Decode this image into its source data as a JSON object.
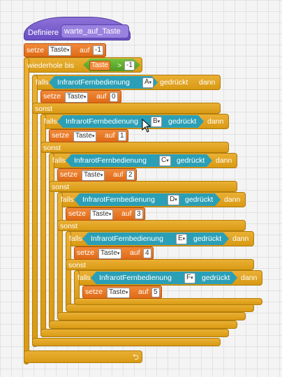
{
  "define_block": {
    "label": "Definiere",
    "name": "warte_auf_Taste"
  },
  "labels": {
    "setze": "setze",
    "auf": "auf",
    "falls": "falls",
    "dann": "dann",
    "sonst": "sonst",
    "wiederhole_bis": "wiederhole bis",
    "gedrueckt": "gedrückt",
    "greater": ">"
  },
  "variable": "Taste",
  "dropdown_arrow": "▾",
  "init_value": "-1",
  "compare_value": "-1",
  "sensor": "InfrarotFernbedienung",
  "branches": [
    {
      "key": "A",
      "value": "0"
    },
    {
      "key": "B",
      "value": "1"
    },
    {
      "key": "C",
      "value": "2"
    },
    {
      "key": "D",
      "value": "3"
    },
    {
      "key": "E",
      "value": "4"
    },
    {
      "key": "F",
      "value": "5"
    }
  ],
  "loop_icon": "⮌",
  "colors": {
    "define": "#6a4fc4",
    "data": "#e06a16",
    "control": "#d99a14",
    "sensing": "#2b9fb6",
    "operator": "#4f9a22"
  }
}
